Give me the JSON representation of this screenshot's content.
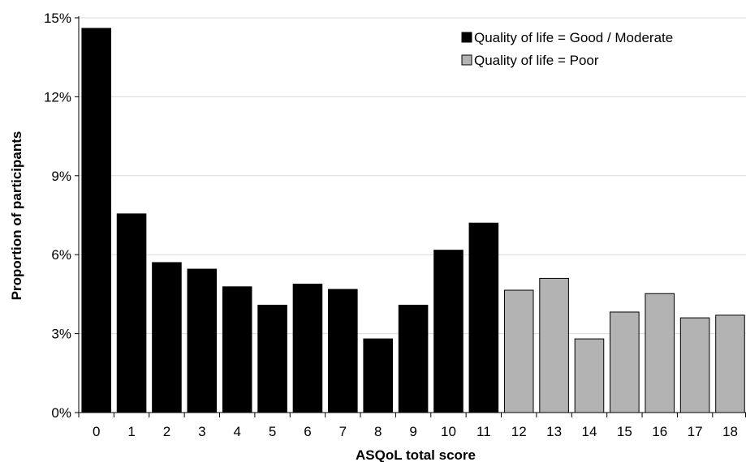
{
  "chart_data": {
    "type": "bar",
    "categories": [
      "0",
      "1",
      "2",
      "3",
      "4",
      "5",
      "6",
      "7",
      "8",
      "9",
      "10",
      "11",
      "12",
      "13",
      "14",
      "15",
      "16",
      "17",
      "18"
    ],
    "series": [
      {
        "name": "Quality of life = Good / Moderate",
        "color": "#000000",
        "values": [
          14.6,
          7.55,
          5.7,
          5.45,
          4.78,
          4.08,
          4.88,
          4.68,
          2.8,
          4.08,
          6.17,
          7.2,
          null,
          null,
          null,
          null,
          null,
          null,
          null
        ]
      },
      {
        "name": "Quality of life = Poor",
        "color": "#b3b3b3",
        "values": [
          null,
          null,
          null,
          null,
          null,
          null,
          null,
          null,
          null,
          null,
          null,
          null,
          4.65,
          5.1,
          2.8,
          3.82,
          4.52,
          3.6,
          3.7
        ]
      }
    ],
    "yticks": [
      "0%",
      "3%",
      "6%",
      "9%",
      "12%",
      "15%"
    ],
    "ylim": [
      0,
      15
    ],
    "ylabel": "Proportion of participants",
    "xlabel": "ASQoL total score",
    "legend_position": "top-right",
    "grid": true,
    "gridline_color": "#d9d9d9"
  }
}
